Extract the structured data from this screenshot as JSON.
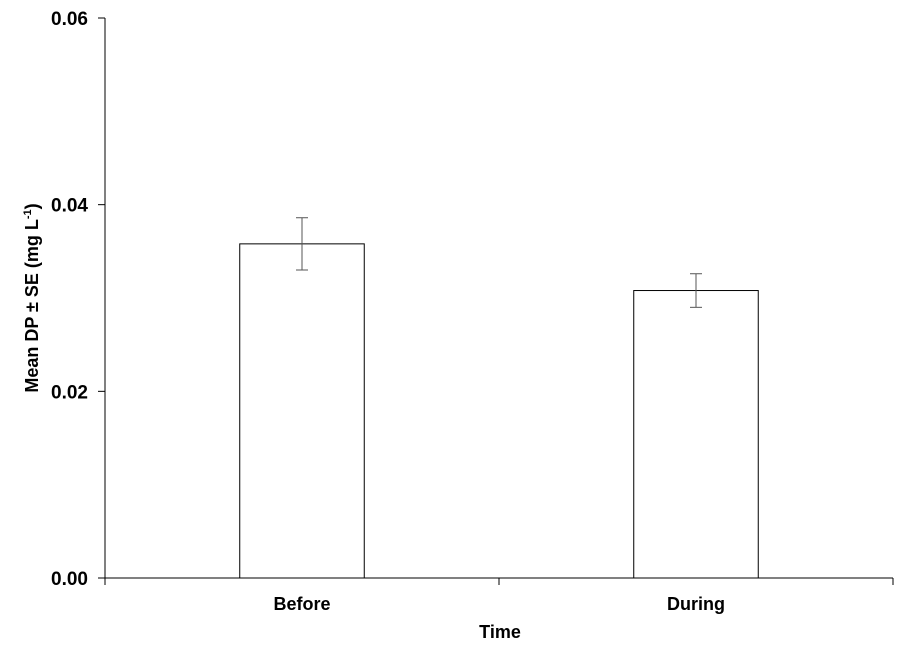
{
  "chart_data": {
    "type": "bar",
    "title": "",
    "xlabel": "Time",
    "ylabel": {
      "main": "Mean DP ± SE (mg L",
      "superscript": "-1",
      "close": ")"
    },
    "categories": [
      "Before",
      "During"
    ],
    "values": [
      0.0358,
      0.0308
    ],
    "errors": [
      0.0028,
      0.0018
    ],
    "ylim": [
      0,
      0.06
    ],
    "yticks": [
      "0.00",
      "0.02",
      "0.04",
      "0.06"
    ],
    "ytick_values": [
      0,
      0.02,
      0.04,
      0.06
    ],
    "grid": false,
    "legend": "none",
    "colors": {
      "bar_fill": "#ffffff",
      "bar_stroke": "#000000",
      "axis": "#000000",
      "error_bar": "#555555"
    }
  }
}
